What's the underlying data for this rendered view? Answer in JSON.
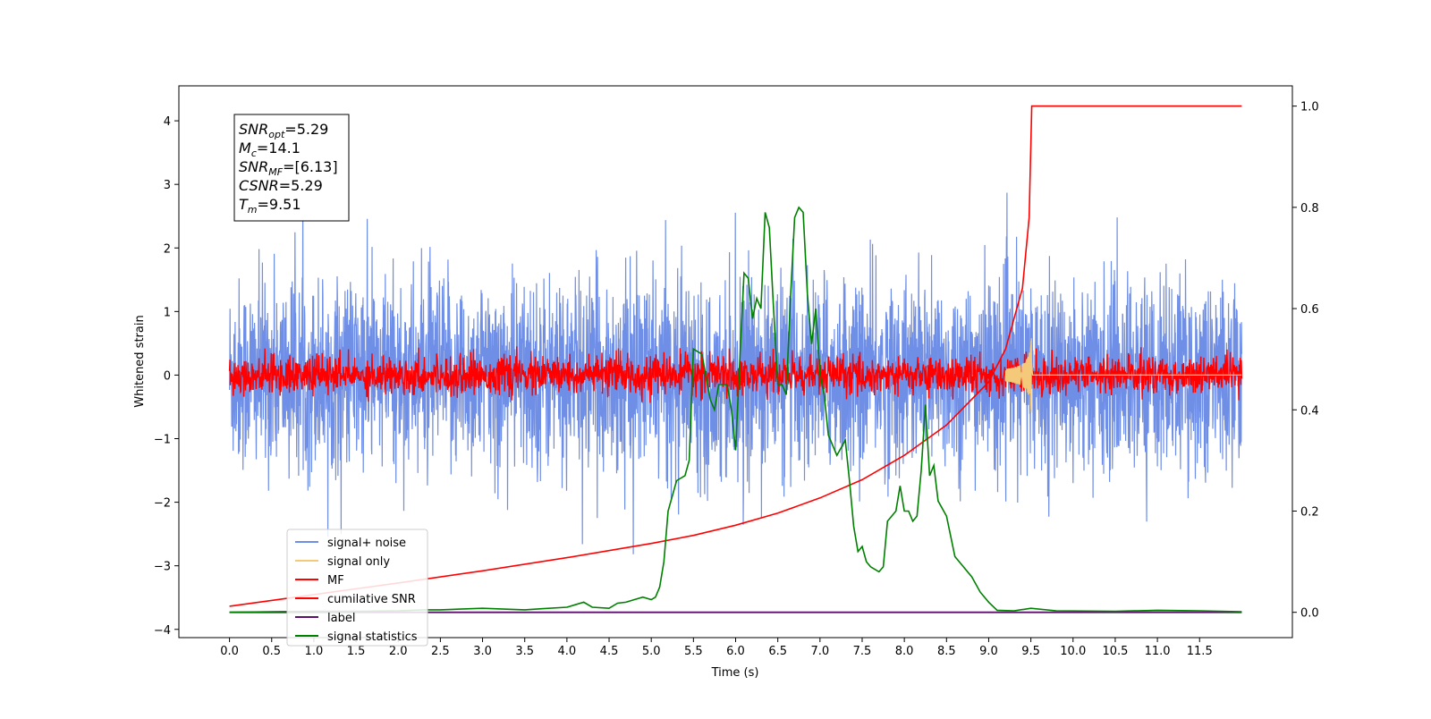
{
  "chart_data": {
    "type": "line",
    "xlabel": "Time (s)",
    "ylabel": "Whitened strain",
    "xlim": [
      -0.6,
      12.6
    ],
    "ylim": [
      -4.13,
      4.55
    ],
    "y2lim": [
      -0.05,
      1.04
    ],
    "x_ticks": [
      "0.0",
      "0.5",
      "1.0",
      "1.5",
      "2.0",
      "2.5",
      "3.0",
      "3.5",
      "4.0",
      "4.5",
      "5.0",
      "5.5",
      "6.0",
      "6.5",
      "7.0",
      "7.5",
      "8.0",
      "8.5",
      "9.0",
      "9.5",
      "10.0",
      "10.5",
      "11.0",
      "11.5"
    ],
    "y_ticks": [
      "4",
      "3",
      "2",
      "1",
      "0",
      "−1",
      "−2",
      "−3",
      "−4"
    ],
    "y2_ticks": [
      "1.0",
      "0.8",
      "0.6",
      "0.4",
      "0.2",
      "0.0"
    ],
    "info_box": [
      {
        "base": "SNR",
        "sub": "opt",
        "value": "=5.29"
      },
      {
        "base": "M",
        "sub": "c",
        "value": "=14.1"
      },
      {
        "base": "SNR",
        "sub": "MF",
        "value": "=[6.13]"
      },
      {
        "base": "CSNR",
        "sub": "",
        "value": "=5.29"
      },
      {
        "base": "T",
        "sub": "m",
        "value": "=9.51"
      }
    ],
    "legend": {
      "position": "lower-left",
      "entries": [
        {
          "label": "signal+ noise",
          "color": "#6f8ee6"
        },
        {
          "label": "signal only",
          "color": "#f5c97a"
        },
        {
          "label": "MF",
          "color": "#ff0000"
        },
        {
          "label": "cumilative SNR",
          "color": "#ff0000"
        },
        {
          "label": "label",
          "color": "#5c0f6b"
        },
        {
          "label": "signal statistics",
          "color": "#008000"
        }
      ]
    },
    "series": [
      {
        "name": "signal+ noise",
        "axis": "left",
        "color": "#6f8ee6",
        "noise_std": 0.75,
        "x_range": [
          0,
          12.0
        ]
      },
      {
        "name": "signal only",
        "axis": "left",
        "color": "#f5c97a",
        "chirp_end": 9.51,
        "peak": 0.8
      },
      {
        "name": "MF",
        "axis": "left",
        "color": "#ff0000",
        "noise_std": 0.15
      },
      {
        "name": "cumilative SNR",
        "axis": "right",
        "color": "#ff0000",
        "x": [
          0.0,
          1.0,
          2.0,
          3.0,
          4.0,
          5.0,
          5.5,
          6.0,
          6.5,
          7.0,
          7.5,
          8.0,
          8.5,
          9.0,
          9.2,
          9.4,
          9.48,
          9.51,
          12.0
        ],
        "y": [
          0.012,
          0.035,
          0.058,
          0.082,
          0.108,
          0.136,
          0.152,
          0.172,
          0.196,
          0.226,
          0.262,
          0.31,
          0.37,
          0.455,
          0.52,
          0.64,
          0.78,
          1.0,
          1.0
        ]
      },
      {
        "name": "label",
        "axis": "right",
        "color": "#5c0f6b",
        "x": [
          0.0,
          12.0
        ],
        "y": [
          0.0,
          0.0
        ]
      },
      {
        "name": "signal statistics",
        "axis": "right",
        "color": "#008000",
        "x": [
          0.0,
          0.5,
          1.0,
          1.5,
          2.0,
          2.3,
          2.5,
          3.0,
          3.5,
          3.7,
          4.0,
          4.1,
          4.2,
          4.3,
          4.5,
          4.6,
          4.7,
          4.8,
          4.9,
          5.0,
          5.05,
          5.1,
          5.15,
          5.2,
          5.3,
          5.4,
          5.45,
          5.5,
          5.6,
          5.7,
          5.75,
          5.8,
          5.9,
          5.95,
          6.0,
          6.05,
          6.1,
          6.15,
          6.2,
          6.25,
          6.3,
          6.35,
          6.4,
          6.45,
          6.5,
          6.55,
          6.6,
          6.65,
          6.7,
          6.75,
          6.8,
          6.85,
          6.9,
          6.95,
          7.0,
          7.05,
          7.1,
          7.2,
          7.3,
          7.35,
          7.4,
          7.45,
          7.5,
          7.55,
          7.6,
          7.7,
          7.75,
          7.8,
          7.9,
          7.95,
          8.0,
          8.05,
          8.1,
          8.15,
          8.2,
          8.25,
          8.3,
          8.35,
          8.4,
          8.5,
          8.6,
          8.7,
          8.8,
          8.9,
          9.0,
          9.1,
          9.3,
          9.5,
          9.8,
          10.5,
          11.0,
          11.5,
          12.0
        ],
        "y": [
          0.0,
          0.001,
          0.002,
          0.002,
          0.003,
          0.005,
          0.005,
          0.008,
          0.005,
          0.007,
          0.01,
          0.015,
          0.02,
          0.01,
          0.008,
          0.018,
          0.02,
          0.025,
          0.03,
          0.025,
          0.03,
          0.05,
          0.1,
          0.2,
          0.26,
          0.27,
          0.3,
          0.52,
          0.51,
          0.42,
          0.4,
          0.45,
          0.45,
          0.4,
          0.32,
          0.5,
          0.67,
          0.66,
          0.58,
          0.62,
          0.6,
          0.79,
          0.76,
          0.6,
          0.45,
          0.45,
          0.43,
          0.62,
          0.78,
          0.8,
          0.79,
          0.63,
          0.53,
          0.6,
          0.47,
          0.43,
          0.35,
          0.31,
          0.34,
          0.26,
          0.17,
          0.12,
          0.13,
          0.1,
          0.09,
          0.08,
          0.09,
          0.18,
          0.2,
          0.25,
          0.2,
          0.2,
          0.18,
          0.19,
          0.28,
          0.41,
          0.27,
          0.29,
          0.22,
          0.19,
          0.11,
          0.09,
          0.07,
          0.04,
          0.02,
          0.004,
          0.003,
          0.008,
          0.003,
          0.002,
          0.004,
          0.003,
          0.001
        ]
      }
    ]
  }
}
